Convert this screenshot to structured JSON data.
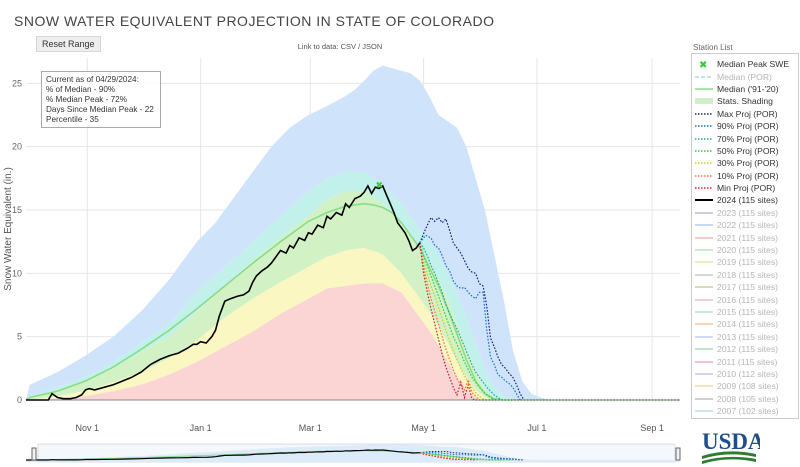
{
  "title": "SNOW WATER EQUIVALENT PROJECTION IN STATE OF COLORADO",
  "reset_label": "Reset Range",
  "link_text": "Link to data: CSV / JSON",
  "station_list_label": "Station List",
  "info_lines": [
    "Current as of 04/29/2024:",
    "% of Median - 90%",
    "% Median Peak - 72%",
    "Days Since Median Peak - 22",
    "Percentile - 35"
  ],
  "logo_text": "USDA",
  "legend": [
    {
      "label": "Median Peak SWE",
      "type": "marker",
      "color": "#33cc33",
      "active": true
    },
    {
      "label": "Median (POR)",
      "type": "dash",
      "color": "#a9dfd2",
      "active": false
    },
    {
      "label": "Median ('91-'20)",
      "type": "line",
      "color": "#88dd88",
      "active": true
    },
    {
      "label": "Stats. Shading",
      "type": "band",
      "color": "#cfeec9",
      "active": true
    },
    {
      "label": "Max Proj (POR)",
      "type": "dot",
      "color": "#1a237e",
      "active": true
    },
    {
      "label": "90% Proj (POR)",
      "type": "dot",
      "color": "#1976d2",
      "active": true
    },
    {
      "label": "70% Proj (POR)",
      "type": "dot",
      "color": "#26a69a",
      "active": true
    },
    {
      "label": "50% Proj (POR)",
      "type": "dot",
      "color": "#2ecc40",
      "active": true
    },
    {
      "label": "30% Proj (POR)",
      "type": "dot",
      "color": "#c6d02a",
      "active": true
    },
    {
      "label": "10% Proj (POR)",
      "type": "dot",
      "color": "#ff7043",
      "active": true
    },
    {
      "label": "Min Proj (POR)",
      "type": "dot",
      "color": "#c62828",
      "active": true
    },
    {
      "label": "2024 (115 sites)",
      "type": "line",
      "color": "#000000",
      "active": true
    },
    {
      "label": "2023 (115 sites)",
      "type": "line",
      "color": "#c9b7e0",
      "active": false
    },
    {
      "label": "2022 (115 sites)",
      "type": "line",
      "color": "#b3cde8",
      "active": false
    },
    {
      "label": "2021 (115 sites)",
      "type": "line",
      "color": "#f2b8b8",
      "active": false
    },
    {
      "label": "2020 (115 sites)",
      "type": "line",
      "color": "#b9e3b9",
      "active": false
    },
    {
      "label": "2019 (115 sites)",
      "type": "line",
      "color": "#f0e0a8",
      "active": false
    },
    {
      "label": "2018 (115 sites)",
      "type": "line",
      "color": "#c8c8c8",
      "active": false
    },
    {
      "label": "2017 (115 sites)",
      "type": "line",
      "color": "#d7c7a0",
      "active": false
    },
    {
      "label": "2016 (115 sites)",
      "type": "line",
      "color": "#f0b8d8",
      "active": false
    },
    {
      "label": "2015 (115 sites)",
      "type": "line",
      "color": "#b0e0e0",
      "active": false
    },
    {
      "label": "2014 (115 sites)",
      "type": "line",
      "color": "#f3c9a3",
      "active": false
    },
    {
      "label": "2013 (115 sites)",
      "type": "line",
      "color": "#c0d0f0",
      "active": false
    },
    {
      "label": "2012 (115 sites)",
      "type": "line",
      "color": "#a8d8b8",
      "active": false
    },
    {
      "label": "2011 (115 sites)",
      "type": "line",
      "color": "#e8b0b0",
      "active": false
    },
    {
      "label": "2010 (112 sites)",
      "type": "line",
      "color": "#d0c0e8",
      "active": false
    },
    {
      "label": "2009 (108 sites)",
      "type": "line",
      "color": "#e8e0a0",
      "active": false
    },
    {
      "label": "2008 (105 sites)",
      "type": "line",
      "color": "#c0c0c0",
      "active": false
    },
    {
      "label": "2007 (102 sites)",
      "type": "line",
      "color": "#c0d8f0",
      "active": false
    }
  ],
  "chart_data": {
    "type": "line",
    "title": "SNOW WATER EQUIVALENT PROJECTION IN STATE OF COLORADO",
    "ylabel": "Snow Water Equivalent (in.)",
    "xlabel": "",
    "x_unit": "day of water year (Oct 1 = 0)",
    "ylim": [
      0,
      27
    ],
    "xlim": [
      -2,
      350
    ],
    "y_ticks": [
      0,
      5,
      10,
      15,
      20,
      25
    ],
    "x_ticks": [
      {
        "label": "Nov 1",
        "x": 31
      },
      {
        "label": "Jan 1",
        "x": 92
      },
      {
        "label": "Mar 1",
        "x": 151
      },
      {
        "label": "May 1",
        "x": 212
      },
      {
        "label": "Jul 1",
        "x": 273
      },
      {
        "label": "Sep 1",
        "x": 335
      }
    ],
    "grid": true,
    "legend_position": "right",
    "annotations": [
      "Current as of 04/29/2024:",
      "% of Median - 90%",
      "% Median Peak - 72%",
      "Days Since Median Peak - 22",
      "Percentile - 35"
    ],
    "median_peak": {
      "x": 188,
      "y": 17.0
    },
    "bands": {
      "max": {
        "x": [
          -2,
          0,
          15,
          30,
          45,
          60,
          75,
          90,
          100,
          110,
          120,
          130,
          140,
          150,
          160,
          170,
          175,
          180,
          185,
          190,
          195,
          200,
          205,
          210,
          215,
          220,
          225,
          230,
          235,
          240,
          245,
          250,
          255,
          260,
          265,
          270,
          275,
          280,
          290,
          350
        ],
        "y": [
          0,
          1.2,
          2.2,
          3.5,
          5,
          7,
          9.5,
          12.5,
          14,
          16,
          18,
          20,
          21.5,
          22.5,
          23.2,
          24,
          24.5,
          25.2,
          26,
          26.4,
          26.2,
          26,
          25.8,
          25.2,
          24,
          22.5,
          22,
          21.5,
          20,
          17.5,
          15,
          11.5,
          8,
          4,
          1.5,
          0.5,
          0.2,
          0,
          0,
          0
        ]
      },
      "p90": {
        "x": [
          -2,
          0,
          15,
          30,
          45,
          60,
          75,
          90,
          105,
          120,
          135,
          150,
          160,
          170,
          180,
          190,
          200,
          210,
          215,
          220,
          225,
          230,
          235,
          240,
          245,
          250,
          255,
          260,
          262,
          350
        ],
        "y": [
          0,
          0.3,
          1.0,
          1.8,
          3,
          4.5,
          6,
          8.5,
          10.5,
          12.5,
          14.5,
          16.5,
          17.5,
          18,
          18,
          17,
          15.5,
          13.5,
          12.5,
          11.5,
          10,
          8.5,
          6.5,
          4.5,
          2.5,
          1,
          0.3,
          0,
          0,
          0
        ]
      },
      "p70": {
        "x": [
          -2,
          0,
          15,
          30,
          45,
          60,
          75,
          90,
          105,
          120,
          135,
          150,
          160,
          170,
          180,
          190,
          200,
          210,
          215,
          220,
          225,
          230,
          235,
          240,
          245,
          250,
          252,
          350
        ],
        "y": [
          0,
          0.2,
          0.8,
          1.5,
          2.5,
          3.8,
          5,
          7,
          9,
          11,
          12.8,
          14.5,
          15.8,
          16.5,
          16.5,
          15.5,
          14,
          12,
          10.8,
          9.5,
          8,
          6,
          4,
          2.2,
          0.8,
          0.1,
          0,
          0
        ]
      },
      "p50": {
        "x": [
          -2,
          0,
          15,
          30,
          45,
          60,
          75,
          90,
          105,
          120,
          135,
          150,
          160,
          170,
          180,
          190,
          200,
          210,
          215,
          220,
          225,
          230,
          235,
          240,
          245,
          250,
          350
        ],
        "y": [
          0,
          0.1,
          0.5,
          1.0,
          2,
          3,
          4.3,
          6,
          8,
          9.8,
          11.5,
          13,
          14,
          14.6,
          14.8,
          14,
          12.2,
          10,
          8.8,
          7.5,
          6,
          4.5,
          3,
          1.8,
          0.6,
          0,
          0
        ]
      },
      "p30": {
        "x": [
          -2,
          0,
          15,
          30,
          45,
          60,
          75,
          90,
          105,
          120,
          135,
          150,
          160,
          170,
          180,
          190,
          200,
          210,
          215,
          220,
          225,
          230,
          235,
          240,
          245,
          248,
          350
        ],
        "y": [
          0,
          0,
          0.3,
          0.7,
          1.4,
          2.2,
          3.3,
          4.7,
          6.5,
          8,
          9.3,
          10.5,
          11.3,
          11.8,
          12,
          11.5,
          10,
          8,
          7,
          5.8,
          4.5,
          3,
          1.8,
          0.8,
          0.2,
          0,
          0
        ]
      },
      "p10": {
        "x": [
          -2,
          0,
          15,
          30,
          45,
          60,
          75,
          90,
          105,
          120,
          135,
          150,
          160,
          170,
          180,
          190,
          200,
          210,
          215,
          220,
          225,
          230,
          235,
          240,
          242,
          350
        ],
        "y": [
          0,
          0,
          0.1,
          0.3,
          0.7,
          1.2,
          2,
          3,
          4.2,
          5.4,
          6.8,
          8,
          8.8,
          9,
          9.2,
          9.2,
          8.5,
          6.5,
          5.5,
          4.3,
          3,
          1.8,
          0.8,
          0.2,
          0,
          0
        ]
      }
    },
    "median_91_20": {
      "x": [
        -2,
        0,
        15,
        30,
        45,
        60,
        75,
        90,
        105,
        120,
        135,
        150,
        160,
        170,
        180,
        185,
        190,
        195,
        200,
        205,
        210,
        215,
        220,
        225,
        230,
        235,
        240,
        245,
        250,
        255,
        260
      ],
      "y": [
        0,
        0.2,
        0.7,
        1.5,
        2.6,
        4,
        5.5,
        7.2,
        9,
        10.8,
        12.5,
        14.1,
        14.8,
        15.3,
        15.5,
        15.4,
        15.2,
        14.8,
        14,
        13,
        12,
        10.5,
        9,
        7.2,
        5.2,
        3.2,
        1.5,
        0.5,
        0.1,
        0,
        0
      ]
    },
    "series_2024": {
      "name": "2024 (115 sites)",
      "x": [
        -2,
        0,
        5,
        8,
        10,
        12,
        15,
        18,
        22,
        25,
        28,
        30,
        32,
        35,
        40,
        45,
        50,
        55,
        60,
        65,
        70,
        75,
        80,
        85,
        88,
        90,
        92,
        95,
        98,
        100,
        102,
        105,
        108,
        112,
        115,
        118,
        120,
        122,
        125,
        128,
        130,
        132,
        135,
        138,
        140,
        142,
        145,
        148,
        150,
        152,
        155,
        158,
        160,
        162,
        165,
        168,
        170,
        172,
        175,
        178,
        180,
        182,
        184,
        186,
        188,
        190,
        192,
        194,
        196,
        198,
        200,
        202,
        204,
        206,
        208,
        210
      ],
      "y": [
        0,
        0,
        0,
        0,
        0,
        0.5,
        0.2,
        0.1,
        0.1,
        0.2,
        0.4,
        0.8,
        0.9,
        0.8,
        1.0,
        1.2,
        1.5,
        1.8,
        2.2,
        2.8,
        3.2,
        3.5,
        3.7,
        4.1,
        4.4,
        4.4,
        4.6,
        4.5,
        5.0,
        5.5,
        6.6,
        7.8,
        8.0,
        8.2,
        8.3,
        8.6,
        9.3,
        9.8,
        10.2,
        10.5,
        10.8,
        11.2,
        11.8,
        11.6,
        12.2,
        12.0,
        12.8,
        12.6,
        13.2,
        13.1,
        13.8,
        13.6,
        14.5,
        14.3,
        14.8,
        14.6,
        15.5,
        15.2,
        15.9,
        16.1,
        16.4,
        16.9,
        16.3,
        16.8,
        16.7,
        16.9,
        16.2,
        15.5,
        14.8,
        14.0,
        13.6,
        13.2,
        12.6,
        11.8,
        12.0,
        12.4
      ]
    },
    "projections": [
      {
        "name": "Max Proj (POR)",
        "color": "#1a237e",
        "x": [
          210,
          213,
          216,
          218,
          220,
          222,
          224,
          226,
          228,
          230,
          232,
          234,
          236,
          238,
          240,
          242,
          244,
          246,
          248,
          250,
          252,
          254,
          256,
          258,
          260,
          262,
          264,
          266
        ],
        "y": [
          12.4,
          13.5,
          14.4,
          14.1,
          14.4,
          14.0,
          14.3,
          13.4,
          12.4,
          12.0,
          11.6,
          11.0,
          10.4,
          10.1,
          10.0,
          9.2,
          9.0,
          7.4,
          4.9,
          4.2,
          3.4,
          2.8,
          2.5,
          2.1,
          1.8,
          1.2,
          0.5,
          0
        ]
      },
      {
        "name": "90% Proj (POR)",
        "color": "#1976d2",
        "x": [
          210,
          213,
          216,
          218,
          220,
          222,
          224,
          226,
          228,
          230,
          232,
          234,
          236,
          238,
          240,
          242,
          244,
          246,
          248,
          250,
          252,
          254,
          256,
          258,
          260,
          262,
          264
        ],
        "y": [
          12.4,
          13.0,
          12.8,
          12.2,
          12.0,
          11.4,
          10.6,
          10.2,
          9.4,
          9.0,
          8.8,
          8.9,
          8.5,
          8.2,
          8.0,
          8.5,
          8.5,
          5.5,
          3.4,
          2.8,
          2.0,
          1.8,
          1.5,
          1.3,
          1.0,
          0.5,
          0
        ]
      },
      {
        "name": "70% Proj (POR)",
        "color": "#26a69a",
        "x": [
          210,
          212,
          214,
          216,
          218,
          220,
          222,
          224,
          226,
          228,
          230,
          232,
          234,
          236,
          238,
          240,
          242,
          244,
          246,
          248,
          250,
          252,
          254
        ],
        "y": [
          12.4,
          12.0,
          11.4,
          10.6,
          10.0,
          9.2,
          8.5,
          7.5,
          6.8,
          6.2,
          5.6,
          4.9,
          4.2,
          3.5,
          2.8,
          2.2,
          1.8,
          1.4,
          1.0,
          0.7,
          0.4,
          0.2,
          0
        ]
      },
      {
        "name": "50% Proj (POR)",
        "color": "#2ecc40",
        "x": [
          210,
          212,
          214,
          216,
          218,
          220,
          222,
          224,
          226,
          228,
          230,
          232,
          234,
          236,
          238,
          240,
          242,
          244,
          246,
          248,
          250
        ],
        "y": [
          12.4,
          11.4,
          10.6,
          9.8,
          9.0,
          8.2,
          7.4,
          6.6,
          5.8,
          5.0,
          4.4,
          3.7,
          3.0,
          2.4,
          1.8,
          1.4,
          1.0,
          0.7,
          0.4,
          0.2,
          0
        ]
      },
      {
        "name": "30% Proj (POR)",
        "color": "#c6d02a",
        "x": [
          210,
          212,
          214,
          216,
          218,
          220,
          222,
          224,
          226,
          228,
          230,
          232,
          234,
          236,
          238,
          240,
          242,
          244,
          246
        ],
        "y": [
          12.4,
          11.0,
          10.0,
          9.0,
          8.2,
          7.3,
          6.4,
          5.5,
          4.7,
          3.9,
          3.2,
          2.5,
          1.9,
          1.4,
          1.0,
          0.6,
          0.3,
          0.1,
          0
        ]
      },
      {
        "name": "10% Proj (POR)",
        "color": "#ff7043",
        "x": [
          210,
          212,
          214,
          216,
          218,
          220,
          222,
          224,
          226,
          228,
          230,
          232,
          234,
          236,
          238,
          240,
          242
        ],
        "y": [
          12.4,
          10.6,
          9.2,
          8.0,
          7.0,
          6.0,
          5.0,
          4.0,
          3.2,
          2.4,
          1.7,
          1.2,
          0.8,
          1.6,
          0.6,
          0.3,
          0
        ]
      },
      {
        "name": "Min Proj (POR)",
        "color": "#c62828",
        "x": [
          210,
          212,
          214,
          216,
          218,
          220,
          222,
          224,
          226,
          228,
          230,
          232,
          234,
          236,
          238,
          240
        ],
        "y": [
          12.4,
          10.0,
          8.5,
          7.2,
          6.0,
          4.8,
          3.6,
          2.6,
          1.8,
          1.0,
          0.4,
          1.4,
          0.2,
          1.2,
          0.1,
          0
        ]
      }
    ]
  }
}
